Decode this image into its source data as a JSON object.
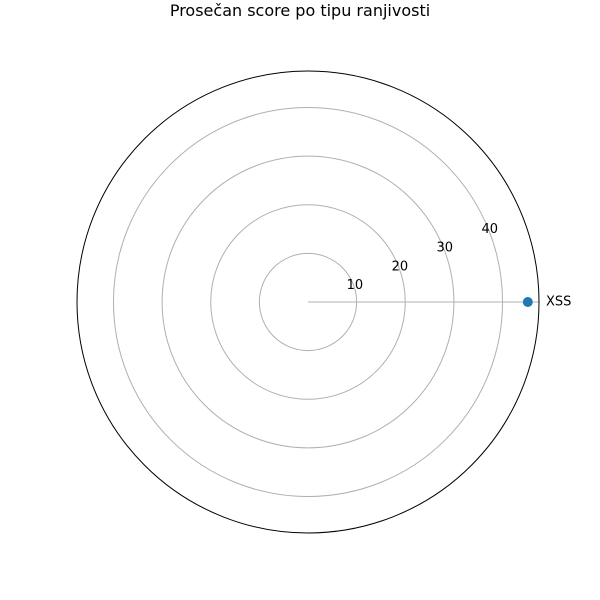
{
  "chart_data": {
    "type": "radar",
    "title": "Prosečan score po tipu ranjivosti",
    "categories": [
      "XSS"
    ],
    "series": [
      {
        "values": [
          45.2
        ],
        "color": "#1f77b4"
      }
    ],
    "r_ticks": [
      10,
      20,
      30,
      40
    ],
    "r_tick_labels": [
      "10",
      "20",
      "30",
      "40"
    ],
    "rlim": [
      0,
      47.5
    ],
    "grid": true,
    "colors": {
      "grid": "#b0b0b0",
      "outer_spine": "#000000",
      "point": "#1f77b4"
    }
  }
}
